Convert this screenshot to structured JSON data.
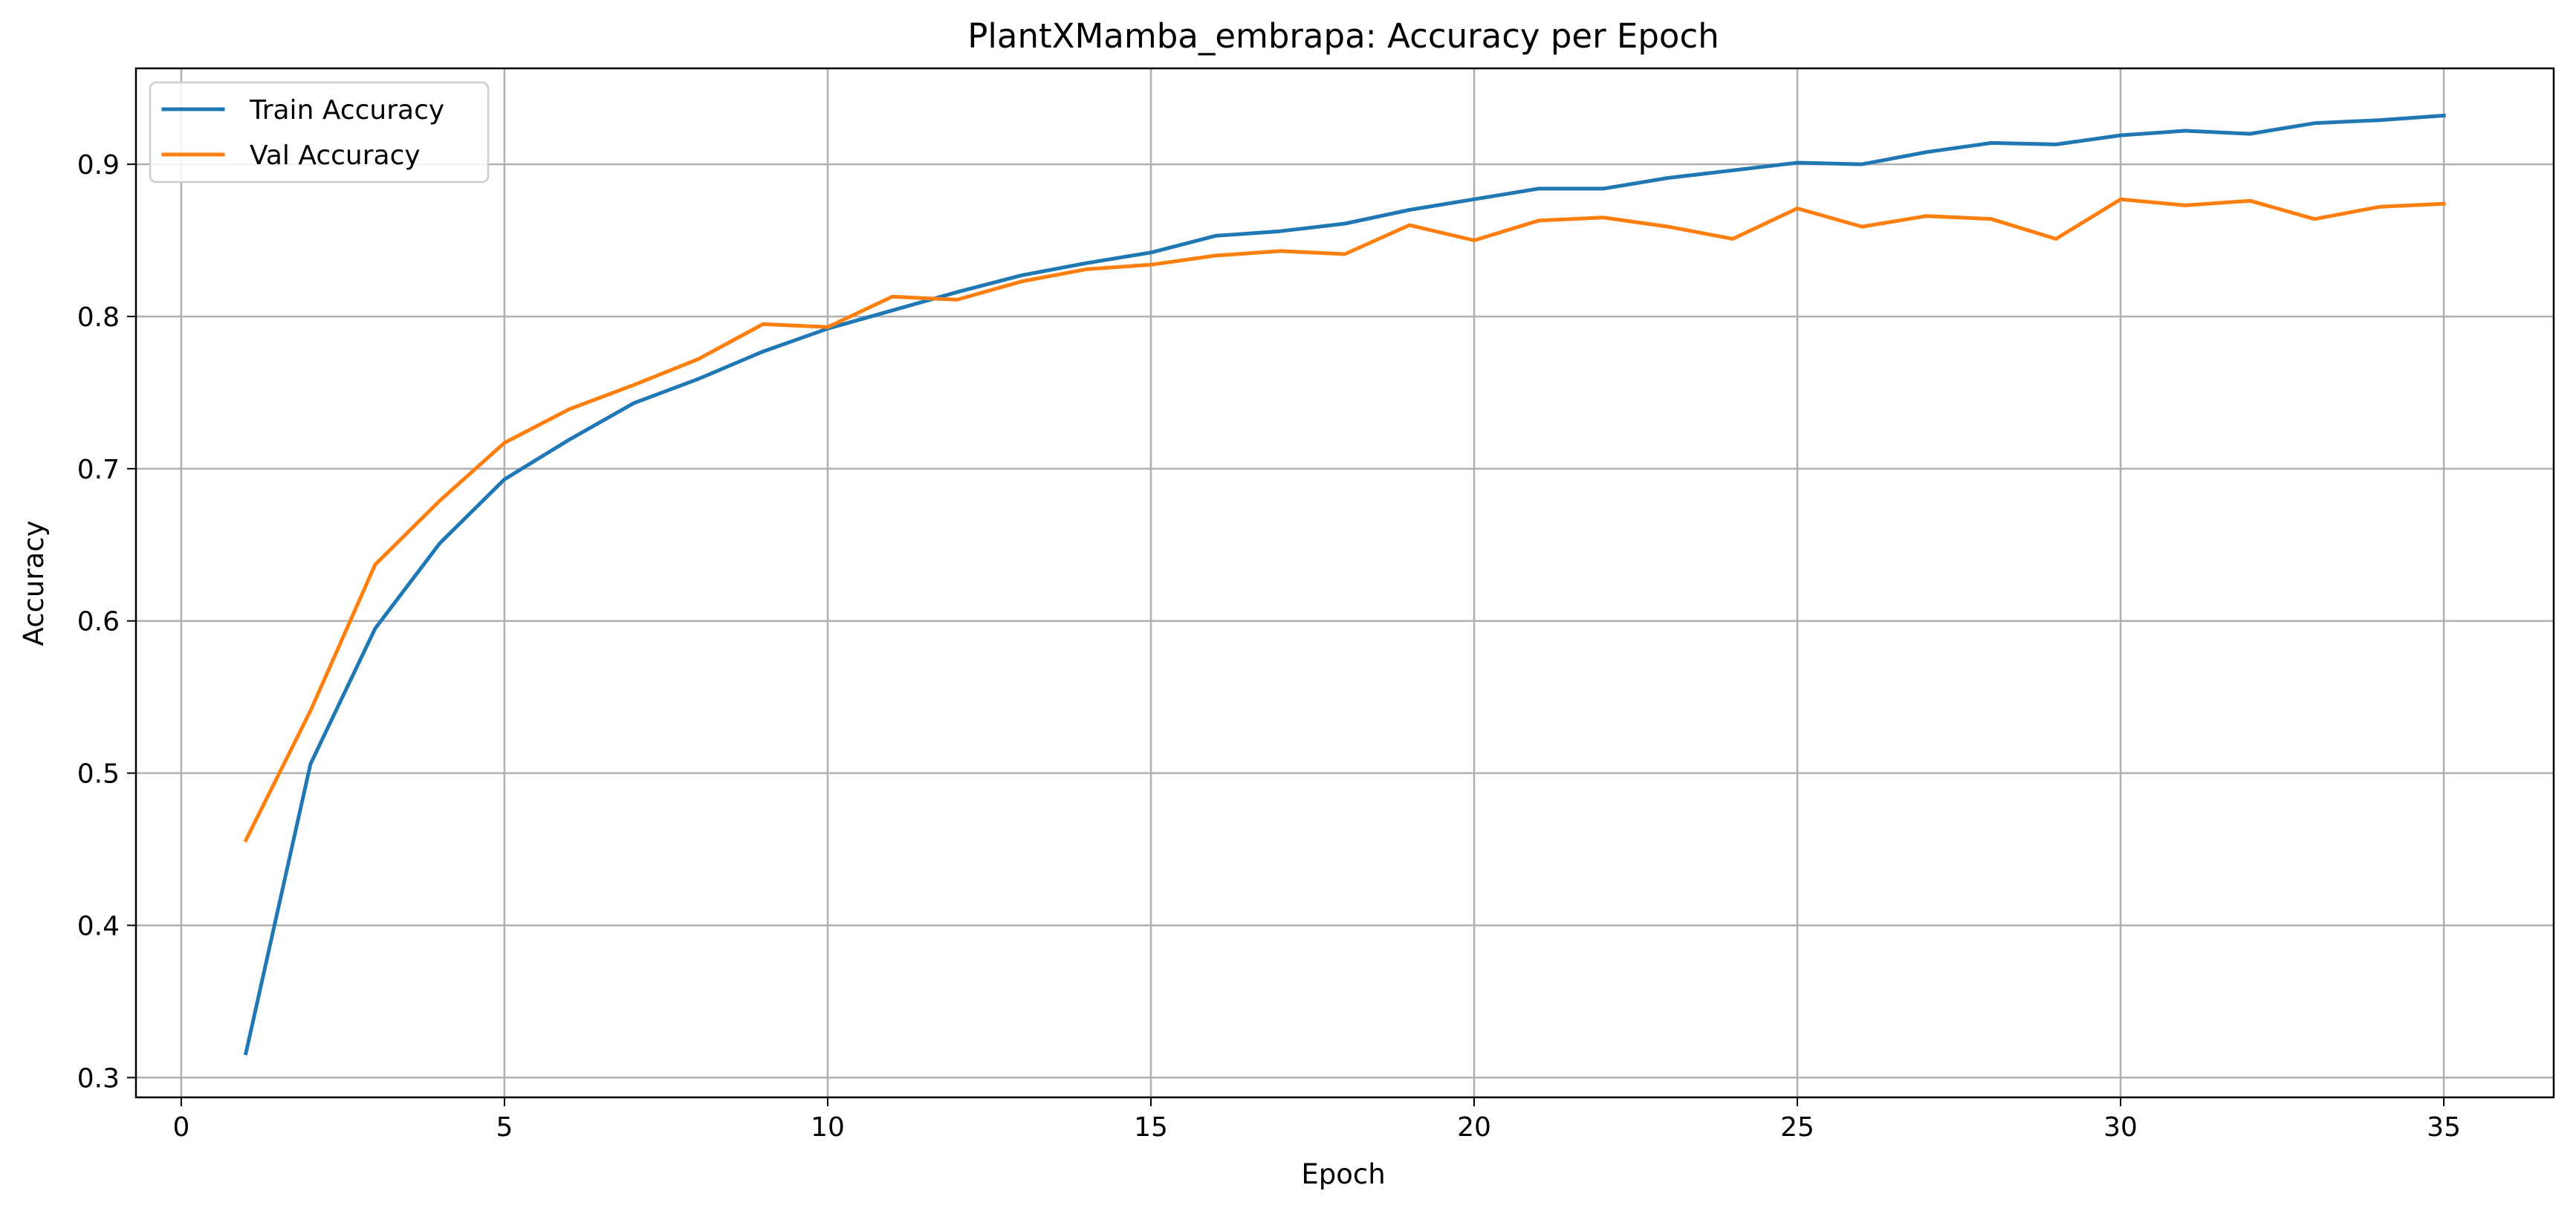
{
  "chart_data": {
    "type": "line",
    "title": "PlantXMamba_embrapa: Accuracy per Epoch",
    "xlabel": "Epoch",
    "ylabel": "Accuracy",
    "xlim": [
      -0.7,
      36.7
    ],
    "ylim": [
      0.287,
      0.963
    ],
    "xticks": [
      0,
      5,
      10,
      15,
      20,
      25,
      30,
      35
    ],
    "yticks": [
      0.3,
      0.4,
      0.5,
      0.6,
      0.7,
      0.8,
      0.9
    ],
    "grid": true,
    "legend_position": "top-left",
    "x": [
      1,
      2,
      3,
      4,
      5,
      6,
      7,
      8,
      9,
      10,
      11,
      12,
      13,
      14,
      15,
      16,
      17,
      18,
      19,
      20,
      21,
      22,
      23,
      24,
      25,
      26,
      27,
      28,
      29,
      30,
      31,
      32,
      33,
      34,
      35
    ],
    "series": [
      {
        "name": "Train Accuracy",
        "color": "#1f77b4",
        "values": [
          0.316,
          0.506,
          0.595,
          0.651,
          0.693,
          0.719,
          0.743,
          0.759,
          0.777,
          0.792,
          0.804,
          0.816,
          0.827,
          0.835,
          0.842,
          0.853,
          0.856,
          0.861,
          0.87,
          0.877,
          0.884,
          0.884,
          0.891,
          0.896,
          0.901,
          0.9,
          0.908,
          0.914,
          0.913,
          0.919,
          0.922,
          0.92,
          0.927,
          0.929,
          0.932
        ]
      },
      {
        "name": "Val Accuracy",
        "color": "#ff7f0e",
        "values": [
          0.456,
          0.541,
          0.637,
          0.679,
          0.717,
          0.739,
          0.755,
          0.772,
          0.795,
          0.793,
          0.813,
          0.811,
          0.823,
          0.831,
          0.834,
          0.84,
          0.843,
          0.841,
          0.86,
          0.85,
          0.863,
          0.865,
          0.859,
          0.851,
          0.871,
          0.859,
          0.866,
          0.864,
          0.851,
          0.877,
          0.873,
          0.876,
          0.864,
          0.872,
          0.874
        ]
      }
    ]
  }
}
